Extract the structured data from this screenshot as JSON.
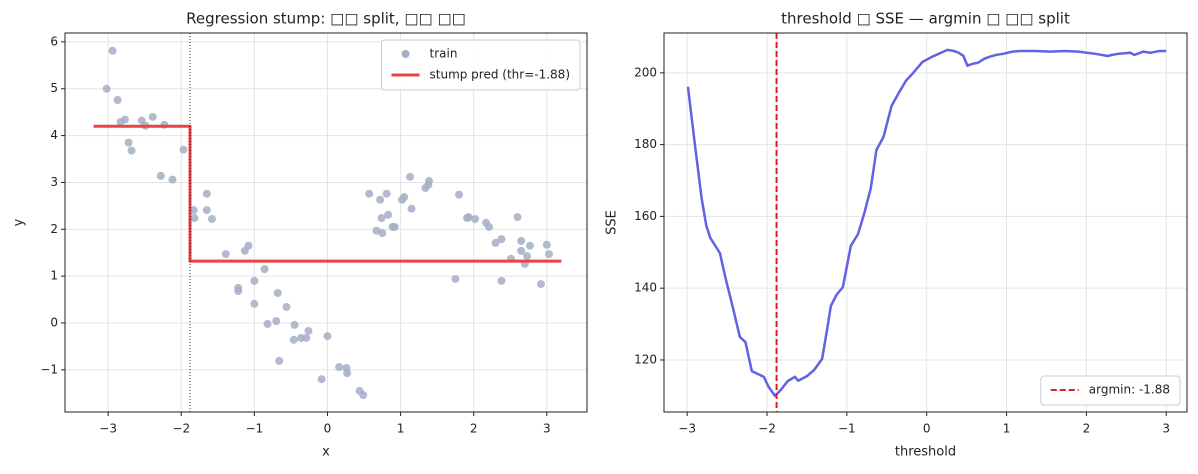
{
  "chart_data": [
    {
      "type": "scatter",
      "title": "Regression stump: □□ split, □□ □□",
      "xlabel": "x",
      "ylabel": "y",
      "xlim": [
        -3.59,
        3.55
      ],
      "ylim": [
        -1.9,
        6.19
      ],
      "xticks": [
        {
          "value": -3,
          "label": "−3"
        },
        {
          "value": -2,
          "label": "−2"
        },
        {
          "value": -1,
          "label": "−1"
        },
        0,
        1,
        2,
        3
      ],
      "yticks": [
        {
          "value": -1,
          "label": "−1"
        },
        0,
        1,
        2,
        3,
        4,
        5,
        6
      ],
      "grid": true,
      "legend": "upper right",
      "series": [
        {
          "name": "train",
          "type": "scatter",
          "color": "#a3afc4",
          "x": [
            -3.02,
            -2.94,
            -2.87,
            -2.83,
            -2.77,
            -2.72,
            -2.68,
            -2.54,
            -2.49,
            -2.39,
            -2.28,
            -2.23,
            -2.12,
            -1.97,
            -1.83,
            -1.82,
            -1.65,
            -1.65,
            -1.58,
            -1.39,
            -1.22,
            -1.22,
            -1.13,
            -1.08,
            -1.0,
            -1.0,
            -0.86,
            -0.82,
            -0.68,
            -0.7,
            -0.66,
            -0.56,
            -0.45,
            -0.46,
            -0.36,
            -0.29,
            -0.26,
            -0.08,
            0.0,
            0.16,
            0.26,
            0.27,
            0.44,
            0.49,
            0.57,
            0.67,
            0.72,
            0.74,
            0.75,
            0.81,
            0.83,
            0.89,
            0.92,
            1.02,
            1.05,
            1.13,
            1.15,
            1.34,
            1.38,
            1.39,
            1.75,
            1.8,
            1.91,
            1.93,
            2.02,
            2.17,
            2.21,
            2.3,
            2.38,
            2.38,
            2.51,
            2.6,
            2.65,
            2.65,
            2.7,
            2.73,
            2.77,
            2.92,
            3.0,
            3.03
          ],
          "values": [
            5.0,
            5.81,
            4.76,
            4.29,
            4.34,
            3.85,
            3.68,
            4.32,
            4.21,
            4.4,
            3.14,
            4.23,
            3.06,
            3.7,
            2.41,
            2.24,
            2.76,
            2.41,
            2.22,
            1.47,
            0.75,
            0.68,
            1.54,
            1.65,
            0.9,
            0.41,
            1.15,
            -0.02,
            0.64,
            0.04,
            -0.81,
            0.34,
            -0.04,
            -0.36,
            -0.32,
            -0.32,
            -0.17,
            -1.2,
            -0.28,
            -0.94,
            -0.96,
            -1.07,
            -1.45,
            -1.54,
            2.76,
            1.97,
            2.63,
            2.24,
            1.92,
            2.76,
            2.31,
            2.05,
            2.05,
            2.63,
            2.69,
            3.12,
            2.44,
            2.88,
            2.95,
            3.03,
            0.94,
            2.74,
            2.24,
            2.26,
            2.22,
            2.14,
            2.05,
            1.71,
            1.79,
            0.9,
            1.37,
            2.26,
            1.75,
            1.54,
            1.26,
            1.43,
            1.65,
            0.83,
            1.67,
            1.47
          ]
        },
        {
          "name": "stump pred (thr=-1.88)",
          "type": "line",
          "color": "#e84444",
          "x": [
            -3.2,
            -1.88,
            -1.88,
            3.2
          ],
          "values": [
            4.2,
            4.2,
            1.32,
            1.32
          ]
        }
      ],
      "vline": {
        "x": -1.88,
        "color": "#000000",
        "style": "dotted"
      }
    },
    {
      "type": "line",
      "title": "threshold □ SSE — argmin □ □□ split",
      "xlabel": "threshold",
      "ylabel": "SSE",
      "xlim": [
        -3.29,
        3.26
      ],
      "ylim": [
        105.5,
        211.1
      ],
      "xticks": [
        {
          "value": -3,
          "label": "−3"
        },
        {
          "value": -2,
          "label": "−2"
        },
        {
          "value": -1,
          "label": "−1"
        },
        0,
        1,
        2,
        3
      ],
      "yticks": [
        120,
        140,
        160,
        180,
        200
      ],
      "grid": true,
      "legend": "lower right",
      "series": [
        {
          "type": "line",
          "color": "#6262e2",
          "x": [
            -2.99,
            -2.91,
            -2.82,
            -2.76,
            -2.71,
            -2.59,
            -2.52,
            -2.42,
            -2.34,
            -2.27,
            -2.19,
            -2.04,
            -1.98,
            -1.9,
            -1.83,
            -1.74,
            -1.65,
            -1.61,
            -1.5,
            -1.41,
            -1.31,
            -1.25,
            -1.2,
            -1.13,
            -1.05,
            -0.95,
            -0.86,
            -0.78,
            -0.7,
            -0.63,
            -0.54,
            -0.44,
            -0.35,
            -0.26,
            -0.18,
            -0.05,
            0.07,
            0.18,
            0.26,
            0.34,
            0.4,
            0.46,
            0.51,
            0.57,
            0.64,
            0.72,
            0.79,
            0.87,
            0.96,
            1.07,
            1.17,
            1.36,
            1.55,
            1.73,
            1.9,
            2.11,
            2.27,
            2.32,
            2.4,
            2.55,
            2.6,
            2.71,
            2.8,
            2.92,
            3.0
          ],
          "values": [
            196.1,
            181.3,
            165.2,
            157.4,
            154.0,
            149.8,
            142.9,
            133.9,
            126.4,
            125.0,
            116.9,
            115.3,
            112.5,
            110.0,
            111.6,
            114.1,
            115.3,
            114.2,
            115.5,
            117.2,
            120.3,
            128.1,
            135.1,
            138.1,
            140.3,
            151.8,
            155.1,
            161.0,
            167.9,
            178.5,
            182.2,
            190.8,
            194.4,
            197.8,
            199.7,
            203.1,
            204.5,
            205.6,
            206.4,
            206.1,
            205.6,
            204.7,
            202.0,
            202.5,
            202.8,
            203.9,
            204.5,
            205.0,
            205.3,
            205.9,
            206.1,
            206.1,
            205.9,
            206.1,
            205.9,
            205.3,
            204.7,
            205.0,
            205.3,
            205.6,
            205.0,
            205.9,
            205.6,
            206.1,
            206.1
          ]
        }
      ],
      "vline": {
        "x": -1.88,
        "name": "argmin: -1.88",
        "color": "#e01e1e",
        "style": "dashed"
      }
    }
  ]
}
